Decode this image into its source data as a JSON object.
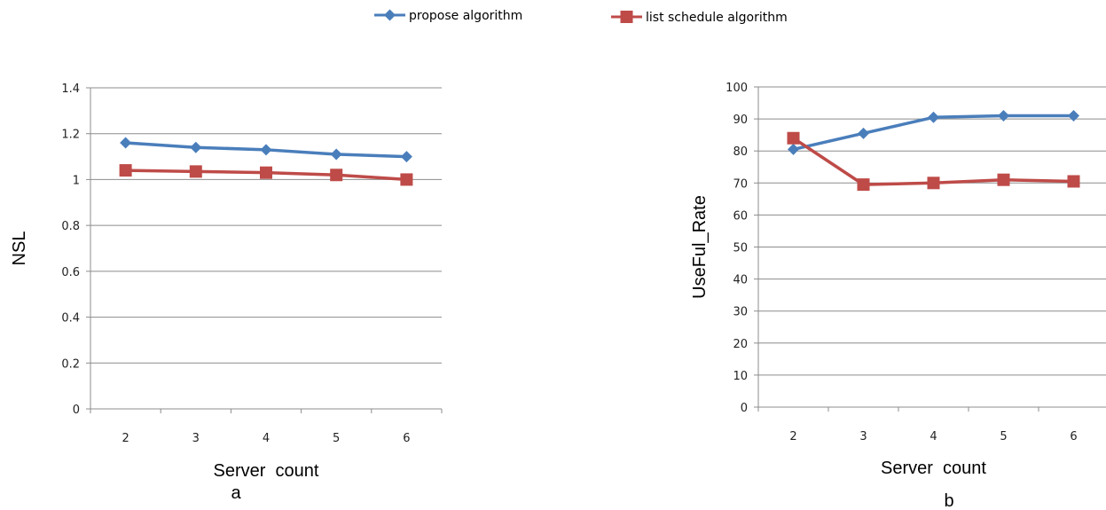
{
  "legend": [
    {
      "name": "propose algorithm",
      "color": "#4a7ebb",
      "marker": "diamond"
    },
    {
      "name": "list schedule algorithm",
      "color": "#be4b48",
      "marker": "square"
    }
  ],
  "chart_data": [
    {
      "type": "line",
      "panel_label": "a",
      "xlabel": "Server  count",
      "ylabel": "NSL",
      "categories": [
        "2",
        "3",
        "4",
        "5",
        "6"
      ],
      "ylim": [
        0,
        1.4
      ],
      "yticks": [
        "0",
        "0.2",
        "0.4",
        "0.6",
        "0.8",
        "1",
        "1.2",
        "1.4"
      ],
      "grid": true,
      "series": [
        {
          "name": "propose algorithm",
          "color": "#4a7ebb",
          "marker": "diamond",
          "values": [
            1.16,
            1.14,
            1.13,
            1.11,
            1.1
          ]
        },
        {
          "name": "list schedule algorithm",
          "color": "#be4b48",
          "marker": "square",
          "values": [
            1.04,
            1.035,
            1.03,
            1.02,
            1.0
          ]
        }
      ]
    },
    {
      "type": "line",
      "panel_label": "b",
      "xlabel": "Server  count",
      "ylabel": "UseFul_Rate",
      "categories": [
        "2",
        "3",
        "4",
        "5",
        "6"
      ],
      "ylim": [
        0,
        100
      ],
      "yticks": [
        "0",
        "10",
        "20",
        "30",
        "40",
        "50",
        "60",
        "70",
        "80",
        "90",
        "100"
      ],
      "grid": true,
      "series": [
        {
          "name": "propose algorithm",
          "color": "#4a7ebb",
          "marker": "diamond",
          "values": [
            80.5,
            85.5,
            90.5,
            91,
            91
          ]
        },
        {
          "name": "list schedule algorithm",
          "color": "#be4b48",
          "marker": "square",
          "values": [
            84,
            69.5,
            70,
            71,
            70.5
          ]
        }
      ]
    }
  ]
}
